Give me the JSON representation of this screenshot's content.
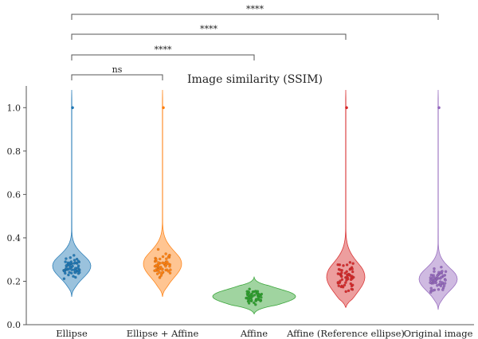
{
  "chart_data": {
    "type": "violin",
    "title": "Image similarity (SSIM)",
    "xlabel": "",
    "ylabel": "",
    "ylim": [
      0,
      1.1
    ],
    "yticks": [
      0.0,
      0.2,
      0.4,
      0.6,
      0.8,
      1.0
    ],
    "ytick_labels": [
      "0.0",
      "0.2",
      "0.4",
      "0.6",
      "0.8",
      "1.0"
    ],
    "grid": false,
    "categories": [
      "Ellipse",
      "Ellipse + Affine",
      "Affine",
      "Affine (Reference ellipse)",
      "Original image"
    ],
    "colors": [
      "#1f77b4",
      "#ff7f0e",
      "#2ca02c",
      "#d62728",
      "#9467bd"
    ],
    "series": [
      {
        "category": "Ellipse",
        "median": 0.27,
        "q1": 0.24,
        "q3": 0.3,
        "min": 0.13,
        "max": 1.08,
        "outliers": [
          1.0
        ]
      },
      {
        "category": "Ellipse + Affine",
        "median": 0.28,
        "q1": 0.24,
        "q3": 0.31,
        "min": 0.13,
        "max": 1.08,
        "outliers": [
          1.0
        ]
      },
      {
        "category": "Affine",
        "median": 0.13,
        "q1": 0.11,
        "q3": 0.15,
        "min": 0.05,
        "max": 0.22,
        "outliers": []
      },
      {
        "category": "Affine (Reference ellipse)",
        "median": 0.22,
        "q1": 0.18,
        "q3": 0.26,
        "min": 0.08,
        "max": 1.08,
        "outliers": [
          1.0
        ]
      },
      {
        "category": "Original image",
        "median": 0.21,
        "q1": 0.18,
        "q3": 0.24,
        "min": 0.07,
        "max": 1.08,
        "outliers": [
          1.0
        ]
      }
    ],
    "annotations": [
      {
        "from": "Ellipse",
        "to": "Ellipse + Affine",
        "label": "ns"
      },
      {
        "from": "Ellipse",
        "to": "Affine",
        "label": "****"
      },
      {
        "from": "Ellipse",
        "to": "Affine (Reference ellipse)",
        "label": "****"
      },
      {
        "from": "Ellipse",
        "to": "Original image",
        "label": "****"
      }
    ]
  }
}
